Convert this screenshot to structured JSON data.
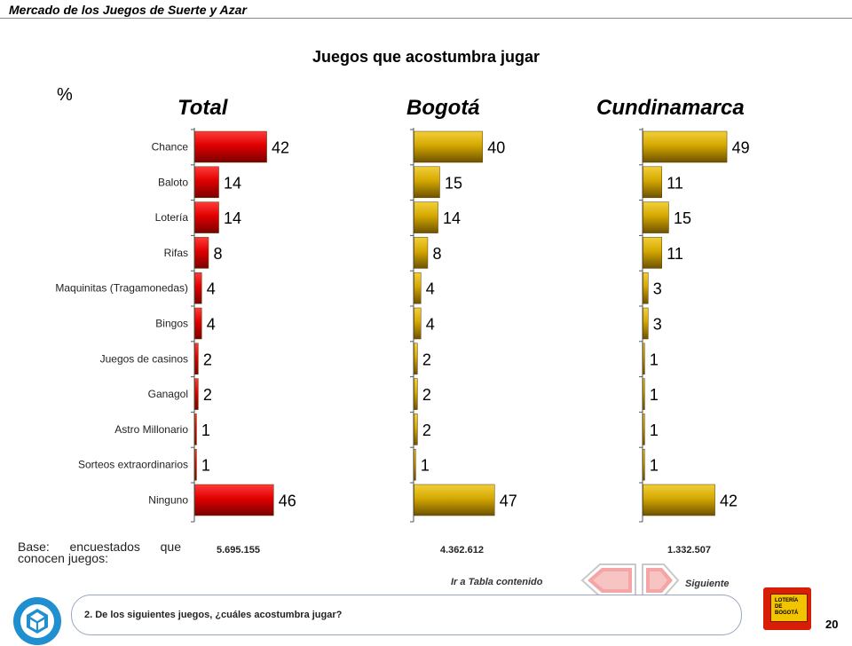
{
  "header": {
    "title": "Mercado de los Juegos de Suerte y Azar"
  },
  "page": {
    "number": "20"
  },
  "chart_data": {
    "type": "bar",
    "title": "Juegos que acostumbra jugar",
    "unit_label": "%",
    "categories": [
      "Chance",
      "Baloto",
      "Lotería",
      "Rifas",
      "Maquinitas (Tragamonedas)",
      "Bingos",
      "Juegos de casinos",
      "Ganagol",
      "Astro Millonario",
      "Sorteos extraordinarios",
      "Ninguno"
    ],
    "series": [
      {
        "name": "Total",
        "color": "#cc0000",
        "values": [
          42,
          14,
          14,
          8,
          4,
          4,
          2,
          2,
          1,
          1,
          46
        ],
        "base": "5.695.155"
      },
      {
        "name": "Bogotá",
        "color": "#d4a000",
        "values": [
          40,
          15,
          14,
          8,
          4,
          4,
          2,
          2,
          2,
          1,
          47
        ],
        "base": "4.362.612"
      },
      {
        "name": "Cundinamarca",
        "color": "#d4a000",
        "values": [
          49,
          11,
          15,
          11,
          3,
          3,
          1,
          1,
          1,
          1,
          42
        ],
        "base": "1.332.507"
      }
    ]
  },
  "base": {
    "label": "Base: encuestados que conocen juegos:"
  },
  "navigation": {
    "toc_label": "Ir a Tabla contenido",
    "next_label": "Siguiente"
  },
  "question": {
    "text": "2. De los siguientes juegos, ¿cuáles acostumbra jugar?"
  },
  "logo": {
    "loteria_text": "LOTERÍA DE BOGOTÁ"
  }
}
